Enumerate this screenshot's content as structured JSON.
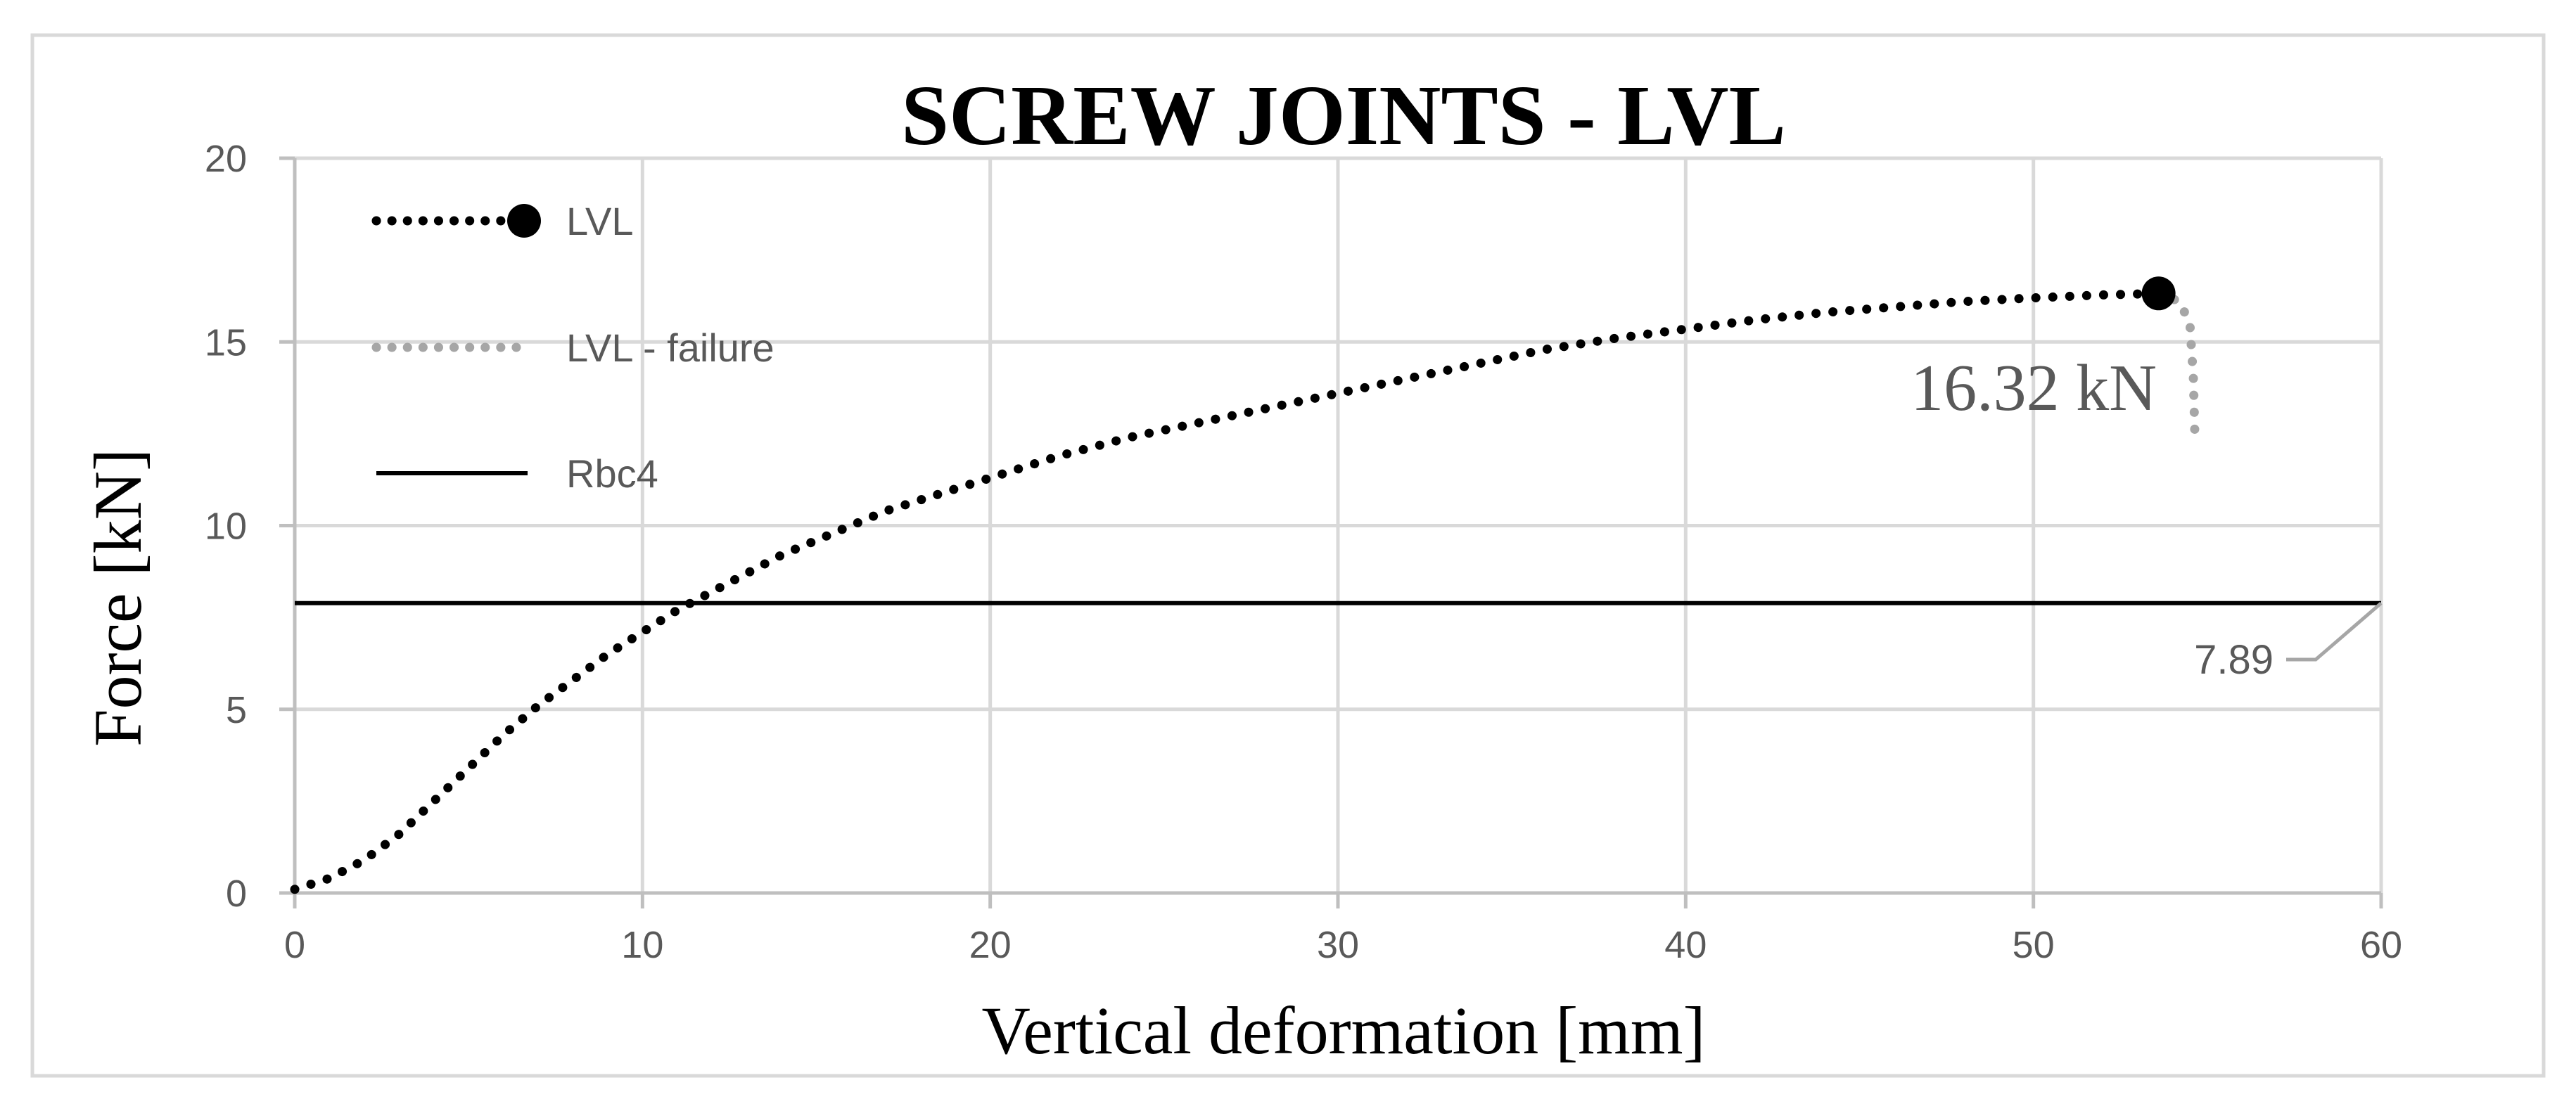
{
  "chart_data": {
    "type": "line",
    "title": "SCREW JOINTS - LVL",
    "xlabel": "Vertical deformation [mm]",
    "ylabel": "Force [kN]",
    "xlim": [
      0,
      60
    ],
    "ylim": [
      0,
      20
    ],
    "x_ticks": [
      0,
      10,
      20,
      30,
      40,
      50,
      60
    ],
    "y_ticks": [
      0,
      5,
      10,
      15,
      20
    ],
    "x_tick_labels": [
      "0",
      "10",
      "20",
      "30",
      "40",
      "50",
      "60"
    ],
    "y_tick_labels": [
      "0",
      "5",
      "10",
      "15",
      "20"
    ],
    "grid": true,
    "legend_position": "top-left",
    "series": [
      {
        "name": "LVL",
        "style": "dotted",
        "color": "#000000",
        "x": [
          0,
          1,
          2,
          3,
          4,
          5,
          6,
          7,
          8,
          9,
          10,
          11,
          12,
          13,
          14,
          15,
          16,
          17,
          18,
          19,
          20,
          22,
          24,
          26,
          28,
          30,
          32,
          34,
          36,
          38,
          40,
          42,
          44,
          46,
          48,
          50,
          52,
          53.6
        ],
        "y": [
          0.1,
          0.4,
          0.9,
          1.6,
          2.5,
          3.4,
          4.3,
          5.1,
          5.8,
          6.5,
          7.1,
          7.7,
          8.2,
          8.7,
          9.2,
          9.6,
          10.0,
          10.4,
          10.7,
          11.0,
          11.3,
          11.9,
          12.4,
          12.8,
          13.2,
          13.6,
          14.0,
          14.4,
          14.8,
          15.1,
          15.35,
          15.6,
          15.8,
          15.95,
          16.1,
          16.2,
          16.28,
          16.32
        ]
      },
      {
        "name": "LVL - failure",
        "style": "dotted",
        "color": "#a6a6a6",
        "x": [
          53.6,
          54.2,
          54.5,
          54.6,
          54.65
        ],
        "y": [
          16.32,
          16.1,
          15.5,
          14.0,
          12.2
        ]
      },
      {
        "name": "Rbc4",
        "style": "solid",
        "color": "#000000",
        "x": [
          0,
          60
        ],
        "y": [
          7.89,
          7.89
        ]
      }
    ],
    "peak_point": {
      "x": 53.6,
      "y": 16.32
    },
    "annotations": {
      "peak_label": "16.32 kN",
      "ref_label": "7.89"
    }
  }
}
